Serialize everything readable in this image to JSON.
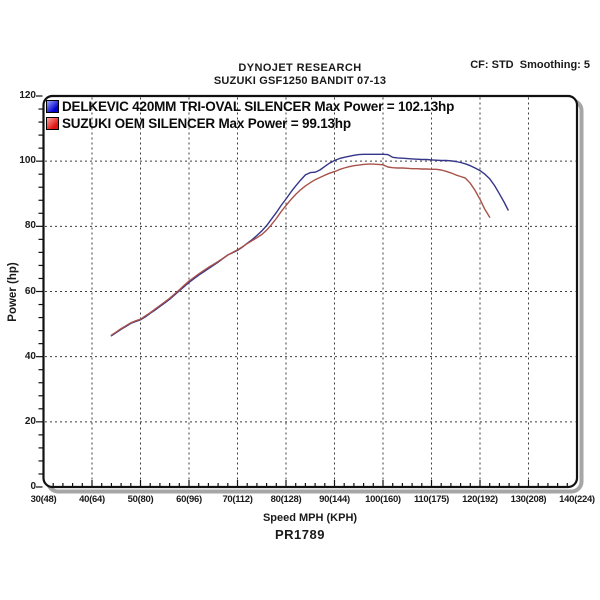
{
  "header": {
    "title": "DYNOJET RESEARCH",
    "subtitle": "SUZUKI GSF1250 BANDIT 07-13",
    "settings": "CF: STD  Smoothing: 5"
  },
  "legend": {
    "items": [
      {
        "label": "DELKEVIC 420MM TRI-OVAL SILENCER Max Power = 102.13hp",
        "swatch_from": "#9fa8ff",
        "swatch_to": "#0000cc"
      },
      {
        "label": "SUZUKI OEM SILENCER Max Power = 99.13hp",
        "swatch_from": "#ffa49c",
        "swatch_to": "#e01212"
      }
    ]
  },
  "footer": {
    "code": "PR1789"
  },
  "chart_data": {
    "type": "line",
    "title": "DYNOJET RESEARCH",
    "subtitle": "SUZUKI GSF1250 BANDIT 07-13",
    "xlabel": "Speed MPH (KPH)",
    "ylabel": "Power (hp)",
    "xlim": [
      30,
      140
    ],
    "ylim": [
      0,
      120
    ],
    "grid": true,
    "legend_position": "top-left inside",
    "x_tick_values": [
      30,
      40,
      50,
      60,
      70,
      80,
      90,
      100,
      110,
      120,
      130,
      140
    ],
    "x_tick_labels": [
      "30(48)",
      "40(64)",
      "50(80)",
      "60(96)",
      "70(112)",
      "80(128)",
      "90(144)",
      "100(160)",
      "110(175)",
      "120(192)",
      "130(208)",
      "140(224)"
    ],
    "y_tick_values": [
      0,
      20,
      40,
      60,
      80,
      100,
      120
    ],
    "y_tick_labels": [
      "0",
      "20",
      "40",
      "60",
      "80",
      "100",
      "120"
    ],
    "x_minor_step": 2,
    "y_minor_step": 4,
    "series": [
      {
        "name": "DELKEVIC 420MM TRI-OVAL SILENCER",
        "max_power_hp": 102.13,
        "color": "#35358a",
        "points": [
          [
            44,
            46.4
          ],
          [
            45,
            47.4
          ],
          [
            46,
            48.4
          ],
          [
            47,
            49.3
          ],
          [
            48,
            50.2
          ],
          [
            49,
            50.8
          ],
          [
            50,
            51.3
          ],
          [
            51,
            52.2
          ],
          [
            52,
            53.3
          ],
          [
            53,
            54.3
          ],
          [
            54,
            55.4
          ],
          [
            55,
            56.5
          ],
          [
            56,
            57.6
          ],
          [
            57,
            58.9
          ],
          [
            58,
            60.2
          ],
          [
            59,
            61.5
          ],
          [
            60,
            62.8
          ],
          [
            61,
            63.9
          ],
          [
            62,
            65
          ],
          [
            63,
            66
          ],
          [
            64,
            67
          ],
          [
            65,
            68
          ],
          [
            66,
            69
          ],
          [
            67,
            70.1
          ],
          [
            68,
            71.2
          ],
          [
            69,
            71.9
          ],
          [
            70,
            72.6
          ],
          [
            71,
            73.6
          ],
          [
            72,
            74.8
          ],
          [
            73,
            75.9
          ],
          [
            74,
            77.2
          ],
          [
            75,
            78.6
          ],
          [
            76,
            80.2
          ],
          [
            77,
            82.2
          ],
          [
            78,
            84.2
          ],
          [
            79,
            86.4
          ],
          [
            80,
            88.4
          ],
          [
            81,
            90.5
          ],
          [
            82,
            92.4
          ],
          [
            83,
            94.2
          ],
          [
            84,
            95.8
          ],
          [
            85,
            96.5
          ],
          [
            86,
            96.6
          ],
          [
            87,
            97.3
          ],
          [
            88,
            98.4
          ],
          [
            89,
            99.4
          ],
          [
            90,
            100.2
          ],
          [
            91,
            100.8
          ],
          [
            92,
            101.2
          ],
          [
            93,
            101.5
          ],
          [
            94,
            101.8
          ],
          [
            95,
            102
          ],
          [
            96,
            102.1
          ],
          [
            97,
            102.1
          ],
          [
            98,
            102.1
          ],
          [
            99,
            102.1
          ],
          [
            100,
            102.1
          ],
          [
            101,
            102
          ],
          [
            102,
            101.2
          ],
          [
            103,
            101
          ],
          [
            104,
            100.9
          ],
          [
            105,
            100.8
          ],
          [
            106,
            100.7
          ],
          [
            107,
            100.6
          ],
          [
            108,
            100.5
          ],
          [
            109,
            100.5
          ],
          [
            110,
            100.4
          ],
          [
            111,
            100.3
          ],
          [
            112,
            100.2
          ],
          [
            113,
            100.2
          ],
          [
            114,
            100.1
          ],
          [
            115,
            99.9
          ],
          [
            116,
            99.6
          ],
          [
            117,
            99.2
          ],
          [
            118,
            98.6
          ],
          [
            119,
            97.9
          ],
          [
            120,
            97.1
          ],
          [
            121,
            96
          ],
          [
            122,
            94.6
          ],
          [
            123,
            92.5
          ],
          [
            124,
            90
          ],
          [
            125,
            87.3
          ],
          [
            125.8,
            85
          ]
        ]
      },
      {
        "name": "SUZUKI OEM SILENCER",
        "max_power_hp": 99.13,
        "color": "#a8524a",
        "points": [
          [
            44,
            46.6
          ],
          [
            45,
            47.6
          ],
          [
            46,
            48.6
          ],
          [
            47,
            49.5
          ],
          [
            48,
            50.4
          ],
          [
            49,
            51
          ],
          [
            50,
            51.5
          ],
          [
            51,
            52.5
          ],
          [
            52,
            53.5
          ],
          [
            53,
            54.6
          ],
          [
            54,
            55.7
          ],
          [
            55,
            56.8
          ],
          [
            56,
            57.9
          ],
          [
            57,
            59.2
          ],
          [
            58,
            60.5
          ],
          [
            59,
            61.9
          ],
          [
            60,
            63.2
          ],
          [
            61,
            64.3
          ],
          [
            62,
            65.4
          ],
          [
            63,
            66.4
          ],
          [
            64,
            67.4
          ],
          [
            65,
            68.3
          ],
          [
            66,
            69.2
          ],
          [
            67,
            70.2
          ],
          [
            68,
            71.2
          ],
          [
            69,
            72
          ],
          [
            70,
            72.8
          ],
          [
            71,
            73.7
          ],
          [
            72,
            74.7
          ],
          [
            73,
            75.6
          ],
          [
            74,
            76.5
          ],
          [
            75,
            77.5
          ],
          [
            76,
            78.8
          ],
          [
            77,
            80.5
          ],
          [
            78,
            82.4
          ],
          [
            79,
            84.5
          ],
          [
            80,
            86.4
          ],
          [
            81,
            88.2
          ],
          [
            82,
            89.8
          ],
          [
            83,
            91.2
          ],
          [
            84,
            92.4
          ],
          [
            85,
            93.4
          ],
          [
            86,
            94.3
          ],
          [
            87,
            95
          ],
          [
            88,
            95.7
          ],
          [
            89,
            96.3
          ],
          [
            90,
            96.8
          ],
          [
            91,
            97.4
          ],
          [
            92,
            97.9
          ],
          [
            93,
            98.3
          ],
          [
            94,
            98.6
          ],
          [
            95,
            98.8
          ],
          [
            96,
            99
          ],
          [
            97,
            99.1
          ],
          [
            98,
            99.1
          ],
          [
            99,
            99
          ],
          [
            100,
            98.9
          ],
          [
            101,
            98.2
          ],
          [
            102,
            98
          ],
          [
            103,
            97.9
          ],
          [
            104,
            97.9
          ],
          [
            105,
            97.8
          ],
          [
            106,
            97.7
          ],
          [
            107,
            97.7
          ],
          [
            108,
            97.6
          ],
          [
            109,
            97.6
          ],
          [
            110,
            97.5
          ],
          [
            111,
            97.5
          ],
          [
            112,
            97.3
          ],
          [
            113,
            96.9
          ],
          [
            114,
            96.4
          ],
          [
            115,
            95.8
          ],
          [
            116,
            95.3
          ],
          [
            117,
            94.8
          ],
          [
            118,
            93.2
          ],
          [
            119,
            91
          ],
          [
            120,
            88.3
          ],
          [
            121,
            85.2
          ],
          [
            122,
            82.8
          ]
        ]
      }
    ]
  }
}
